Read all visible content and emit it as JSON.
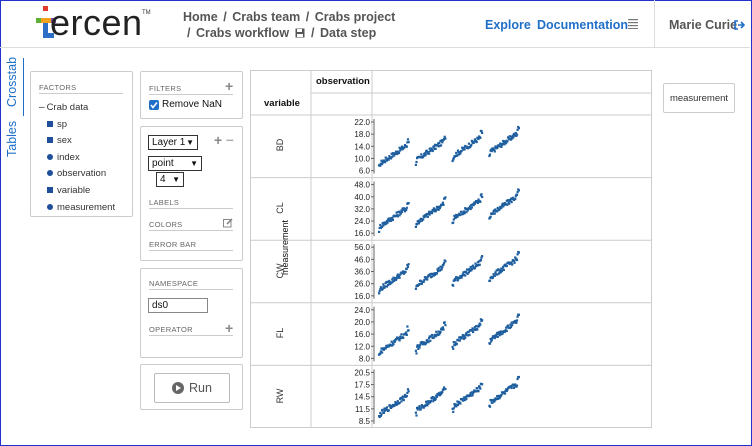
{
  "header": {
    "logo_text": "ercen",
    "logo_tm": "TM",
    "breadcrumb": {
      "home": "Home",
      "team": "Crabs team",
      "project": "Crabs project",
      "workflow": "Crabs workflow",
      "step": "Data step",
      "sep": "/"
    },
    "nav": {
      "explore": "Explore",
      "documentation": "Documentation"
    },
    "menu_icon": "hamburger-menu-icon",
    "user": "Marie Curie",
    "logout_icon": "logout-icon"
  },
  "side_tabs": {
    "crosstab": "Crosstab",
    "tables": "Tables"
  },
  "factors": {
    "title": "FACTORS",
    "group": "Crab data",
    "items": [
      {
        "label": "sp",
        "icon": "square"
      },
      {
        "label": "sex",
        "icon": "square"
      },
      {
        "label": "index",
        "icon": "dot"
      },
      {
        "label": "observation",
        "icon": "dot"
      },
      {
        "label": "variable",
        "icon": "square"
      },
      {
        "label": "measurement",
        "icon": "dot"
      }
    ]
  },
  "filters": {
    "title": "FILTERS",
    "remove_nan": "Remove NaN",
    "remove_nan_checked": true
  },
  "layer": {
    "layer_value": "Layer 1",
    "chart_type": "point",
    "point_size": "4",
    "labels": "LABELS",
    "colors": "COLORS",
    "error_bar": "ERROR BAR"
  },
  "namespace": {
    "title": "NAMESPACE",
    "value": "ds0",
    "operator": "OPERATOR"
  },
  "run": {
    "label": "Run"
  },
  "crosstab": {
    "col_factor": "observation",
    "row_factor": "variable",
    "y_axis_label": "measurement",
    "rows": [
      {
        "name": "BD",
        "ticks": [
          "22.0",
          "18.0",
          "14.0",
          "10.0",
          "6.0"
        ]
      },
      {
        "name": "CL",
        "ticks": [
          "48.0",
          "40.0",
          "32.0",
          "24.0",
          "16.0"
        ]
      },
      {
        "name": "CW",
        "ticks": [
          "56.0",
          "46.0",
          "36.0",
          "26.0",
          "16.0"
        ]
      },
      {
        "name": "FL",
        "ticks": [
          "24.0",
          "20.0",
          "16.0",
          "12.0",
          "8.0"
        ]
      },
      {
        "name": "RW",
        "ticks": [
          "20.5",
          "17.5",
          "14.5",
          "11.5",
          "8.5"
        ]
      }
    ]
  },
  "measurement_button": "measurement",
  "colors": {
    "accent": "#1f6fc9",
    "point": "#1f5f9f",
    "logo_red": "#e23a2d",
    "logo_green": "#5db135",
    "logo_orange": "#f2a21d",
    "logo_blue": "#2d6ec7",
    "logo_purple": "#7b4ca6"
  }
}
